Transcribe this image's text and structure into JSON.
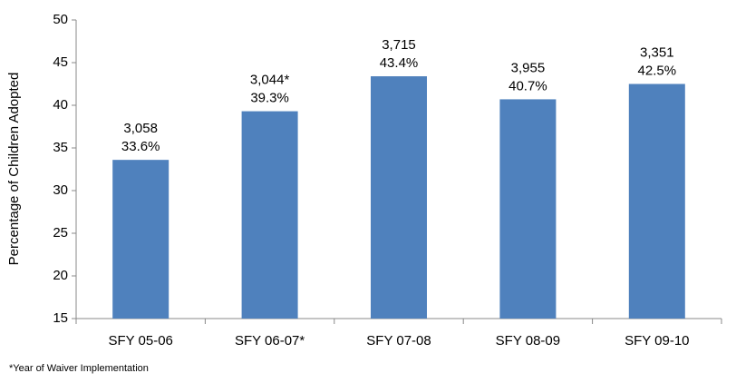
{
  "chart_data": {
    "type": "bar",
    "y_axis_label": "Percentage of Children Adopted",
    "categories": [
      "SFY 05-06",
      "SFY 06-07*",
      "SFY 07-08",
      "SFY 08-09",
      "SFY 09-10"
    ],
    "values": [
      33.6,
      39.3,
      43.4,
      40.7,
      42.5
    ],
    "value_labels": [
      "33.6%",
      "39.3%",
      "43.4%",
      "40.7%",
      "42.5%"
    ],
    "count_labels": [
      "3,058",
      "3,044*",
      "3,715",
      "3,955",
      "3,351"
    ],
    "color": "#4f81bd",
    "ylim": [
      15,
      50
    ],
    "yticks": [
      15,
      20,
      25,
      30,
      35,
      40,
      45,
      50
    ],
    "grid": false,
    "footnote": "*Year of Waiver Implementation"
  }
}
